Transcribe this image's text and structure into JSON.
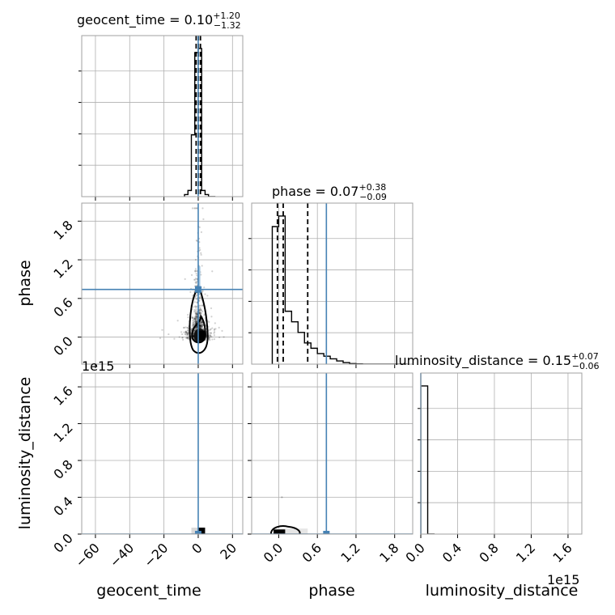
{
  "chart_data": {
    "type": "corner",
    "parameters": [
      "geocent_time",
      "phase",
      "luminosity_distance"
    ],
    "truth_color": "#4682b4",
    "truths": {
      "geocent_time": 0.0,
      "phase": 0.74,
      "luminosity_distance": 0.0
    },
    "titles": [
      {
        "param": "geocent_time",
        "label": "geocent_time = 0.10",
        "sup": "+1.20",
        "sub": "−1.32"
      },
      {
        "param": "phase",
        "label": "phase = 0.07",
        "sup": "+0.38",
        "sub": "−0.09"
      },
      {
        "param": "luminosity_distance",
        "label": "luminosity_distance = 0.15",
        "sup": "+0.07",
        "sub": "−0.06"
      }
    ],
    "axes": {
      "geocent_time": {
        "range": [
          -68,
          26
        ],
        "ticks": [
          -60,
          -40,
          -20,
          0,
          20
        ],
        "tick_labels": [
          "−60",
          "−40",
          "−20",
          "0",
          "20"
        ]
      },
      "phase": {
        "range": [
          -0.42,
          2.08
        ],
        "ticks": [
          0.0,
          0.6,
          1.2,
          1.8
        ],
        "tick_labels": [
          "0.0",
          "0.6",
          "1.2",
          "1.8"
        ]
      },
      "luminosity_distance": {
        "range": [
          0.0,
          1.75
        ],
        "ticks": [
          0.0,
          0.4,
          0.8,
          1.2,
          1.6
        ],
        "tick_labels": [
          "0.0",
          "0.4",
          "0.8",
          "1.2",
          "1.6"
        ],
        "offset_text": "1e15"
      }
    },
    "marginals": {
      "geocent_time": {
        "quantiles": [
          -1.22,
          0.1,
          1.3
        ],
        "bin_edges": [
          -8,
          -6,
          -4,
          -2,
          0,
          2,
          4,
          6,
          8,
          10
        ],
        "counts": [
          1,
          3,
          30,
          70,
          72,
          3,
          1,
          0,
          0
        ]
      },
      "phase": {
        "quantiles": [
          -0.02,
          0.07,
          0.45
        ],
        "bin_edges": [
          -0.1,
          0.0,
          0.1,
          0.2,
          0.3,
          0.4,
          0.5,
          0.6,
          0.7,
          0.8,
          0.9,
          1.0,
          1.1,
          1.2,
          1.3,
          1.4,
          1.5,
          1.6,
          1.7,
          1.8,
          1.9,
          2.0
        ],
        "counts": [
          26,
          28,
          10,
          8,
          6,
          4,
          3,
          2,
          1.5,
          1,
          0.6,
          0.3,
          0.1,
          0.05,
          0,
          0,
          0,
          0,
          0,
          0,
          0
        ]
      },
      "luminosity_distance": {
        "quantiles": [],
        "bin_edges": [
          0.0,
          0.075,
          0.15
        ],
        "counts": [
          72,
          0
        ]
      }
    },
    "pairs": [
      {
        "x": "geocent_time",
        "y": "phase",
        "contours": 2
      },
      {
        "x": "geocent_time",
        "y": "luminosity_distance",
        "contours": 0
      },
      {
        "x": "phase",
        "y": "luminosity_distance",
        "contours": 1
      }
    ],
    "grid": true
  }
}
